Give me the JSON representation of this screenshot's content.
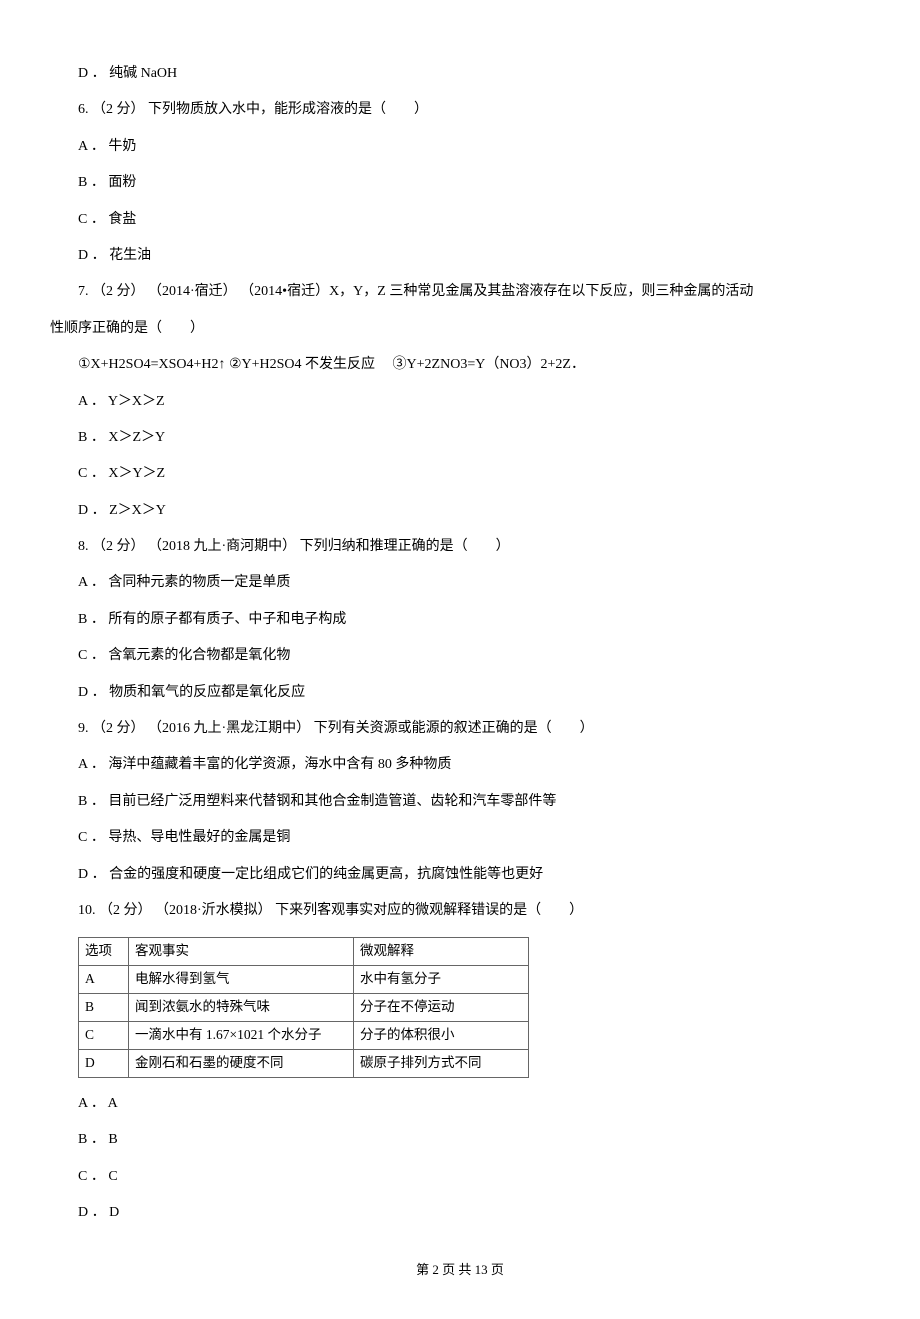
{
  "q5d": "D ． 纯碱 NaOH",
  "q6": {
    "stem": "6. （2 分） 下列物质放入水中，能形成溶液的是（　　）",
    "a": "A ． 牛奶",
    "b": "B ． 面粉",
    "c": "C ． 食盐",
    "d": "D ． 花生油"
  },
  "q7": {
    "stem1": "7. （2 分） （2014·宿迁） （2014•宿迁）X，Y，Z 三种常见金属及其盐溶液存在以下反应，则三种金属的活动",
    "stem2": "性顺序正确的是（　　）",
    "eq": "①X+H2SO4=XSO4+H2↑ ②Y+H2SO4 不发生反应　 ③Y+2ZNO3=Y（NO3）2+2Z．",
    "a": "A ． Y＞X＞Z",
    "b": "B ． X＞Z＞Y",
    "c": "C ． X＞Y＞Z",
    "d": "D ． Z＞X＞Y"
  },
  "q8": {
    "stem": "8. （2 分） （2018 九上·商河期中） 下列归纳和推理正确的是（　　）",
    "a": "A ． 含同种元素的物质一定是单质",
    "b": "B ． 所有的原子都有质子、中子和电子构成",
    "c": "C ． 含氧元素的化合物都是氧化物",
    "d": "D ． 物质和氧气的反应都是氧化反应"
  },
  "q9": {
    "stem": "9. （2 分） （2016 九上·黑龙江期中） 下列有关资源或能源的叙述正确的是（　　）",
    "a": "A ． 海洋中蕴藏着丰富的化学资源，海水中含有 80 多种物质",
    "b": "B ． 目前已经广泛用塑料来代替钢和其他合金制造管道、齿轮和汽车零部件等",
    "c": "C ． 导热、导电性最好的金属是铜",
    "d": "D ． 合金的强度和硬度一定比组成它们的纯金属更高，抗腐蚀性能等也更好"
  },
  "q10": {
    "stem": "10. （2 分） （2018·沂水模拟） 下来列客观事实对应的微观解释错误的是（　　）",
    "table": {
      "h1": "选项",
      "h2": "客观事实",
      "h3": "微观解释",
      "rows": [
        {
          "c1": "A",
          "c2": "电解水得到氢气",
          "c3": "水中有氢分子"
        },
        {
          "c1": "B",
          "c2": "闻到浓氨水的特殊气味",
          "c3": "分子在不停运动"
        },
        {
          "c1": "C",
          "c2": "一滴水中有 1.67×1021 个水分子",
          "c3": "分子的体积很小"
        },
        {
          "c1": "D",
          "c2": "金刚石和石墨的硬度不同",
          "c3": "碳原子排列方式不同"
        }
      ]
    },
    "a": "A ． A",
    "b": "B ． B",
    "c": "C ． C",
    "d": "D ． D"
  },
  "footer": "第 2 页 共 13 页"
}
